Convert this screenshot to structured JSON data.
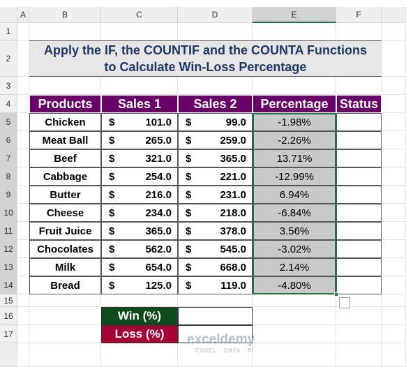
{
  "columns": [
    "A",
    "B",
    "C",
    "D",
    "E",
    "F"
  ],
  "row_numbers": [
    "1",
    "2",
    "3",
    "4",
    "5",
    "6",
    "7",
    "8",
    "9",
    "10",
    "11",
    "12",
    "13",
    "14",
    "15",
    "16",
    "17"
  ],
  "title": {
    "line1": "Apply the IF, the COUNTIF and the COUNTA Functions",
    "line2": "to Calculate Win-Loss Percentage"
  },
  "table": {
    "headers": [
      "Products",
      "Sales 1",
      "Sales 2",
      "Percentage",
      "Status"
    ],
    "rows": [
      [
        "Chicken",
        "$",
        "101.0",
        "$",
        "99.0",
        "-1.98%"
      ],
      [
        "Meat Ball",
        "$",
        "265.0",
        "$",
        "259.0",
        "-2.26%"
      ],
      [
        "Beef",
        "$",
        "321.0",
        "$",
        "365.0",
        "13.71%"
      ],
      [
        "Cabbage",
        "$",
        "254.0",
        "$",
        "221.0",
        "-12.99%"
      ],
      [
        "Butter",
        "$",
        "216.0",
        "$",
        "231.0",
        "6.94%"
      ],
      [
        "Cheese",
        "$",
        "234.0",
        "$",
        "218.0",
        "-6.84%"
      ],
      [
        "Fruit Juice",
        "$",
        "365.0",
        "$",
        "378.0",
        "3.56%"
      ],
      [
        "Chocolates",
        "$",
        "562.0",
        "$",
        "545.0",
        "-3.02%"
      ],
      [
        "Milk",
        "$",
        "654.0",
        "$",
        "668.0",
        "2.14%"
      ],
      [
        "Bread",
        "$",
        "125.0",
        "$",
        "119.0",
        "-4.80%"
      ]
    ]
  },
  "summary": {
    "labels": [
      "Win (%)",
      "Loss (%)"
    ]
  },
  "watermark": {
    "brand": "exceldemy",
    "tagline": "EXCEL · DATA · BI"
  }
}
